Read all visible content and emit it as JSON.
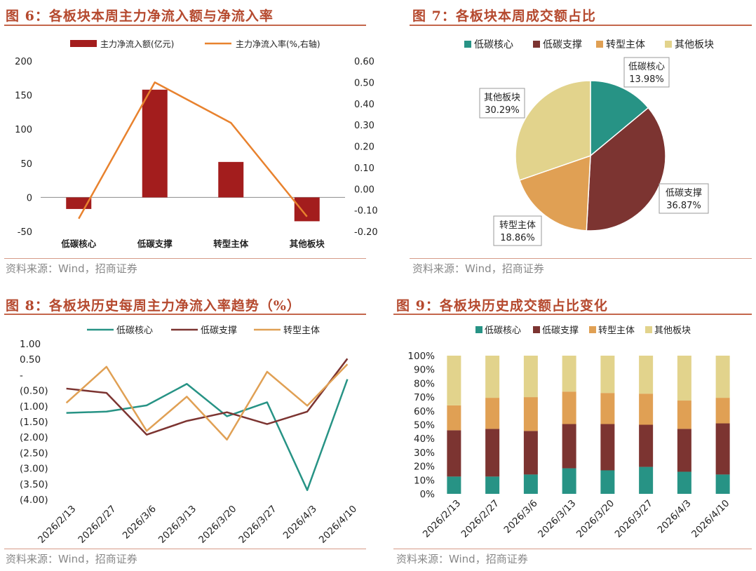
{
  "colors": {
    "title": "#b5492e",
    "bar_red": "#a31d1d",
    "line_orange": "#e8822e",
    "teal": "#279385",
    "brown": "#7c3431",
    "orange": "#e0a054",
    "khaki": "#e2d38c",
    "source_gray": "#888888"
  },
  "panels": {
    "fig6": {
      "title": "图 6：各板块本周主力净流入额与净流入率",
      "source": "资料来源：Wind，招商证券"
    },
    "fig7": {
      "title": "图 7：各板块本周成交额占比",
      "source": "资料来源：Wind，招商证券"
    },
    "fig8": {
      "title": "图 8：各板块历史每周主力净流入率趋势（%）",
      "source": "资料来源：Wind，招商证券"
    },
    "fig9": {
      "title": "图 9：各板块历史成交额占比变化",
      "source": "资料来源：Wind，招商证券"
    }
  },
  "chart_data": [
    {
      "id": "fig6",
      "type": "bar",
      "categories": [
        "低碳核心",
        "低碳支撑",
        "转型主体",
        "其他板块"
      ],
      "series": [
        {
          "name": "主力净流入额(亿元)",
          "type": "bar",
          "axis": "left",
          "values": [
            -17,
            158,
            52,
            -35
          ]
        },
        {
          "name": "主力净流入率(%,右轴)",
          "type": "line",
          "axis": "right",
          "values": [
            -0.14,
            0.5,
            0.31,
            -0.13
          ]
        }
      ],
      "ylim_left": [
        -50,
        200
      ],
      "yticks_left": [
        "200",
        "150",
        "100",
        "50",
        "0",
        "-50"
      ],
      "ylim_right": [
        -0.2,
        0.6
      ],
      "yticks_right": [
        "0.60",
        "0.50",
        "0.40",
        "0.30",
        "0.20",
        "0.10",
        "0.00",
        "-0.10",
        "-0.20"
      ],
      "legend_position": "top"
    },
    {
      "id": "fig7",
      "type": "pie",
      "categories": [
        "低碳核心",
        "低碳支撑",
        "转型主体",
        "其他板块"
      ],
      "values": [
        13.98,
        36.87,
        18.86,
        30.29
      ],
      "labels": [
        "13.98%",
        "36.87%",
        "18.86%",
        "30.29%"
      ],
      "legend": [
        "低碳核心",
        "低碳支撑",
        "转型主体",
        "其他板块"
      ],
      "legend_position": "top"
    },
    {
      "id": "fig8",
      "type": "line",
      "x": [
        "2026/2/13",
        "2026/2/27",
        "2026/3/6",
        "2026/3/13",
        "2026/3/20",
        "2026/3/27",
        "2026/4/3",
        "2026/4/10"
      ],
      "series": [
        {
          "name": "低碳核心",
          "values": [
            -1.22,
            -1.18,
            -0.98,
            -0.29,
            -1.33,
            -0.88,
            -3.7,
            -0.14
          ]
        },
        {
          "name": "低碳支撑",
          "values": [
            -0.44,
            -0.58,
            -1.92,
            -1.48,
            -1.2,
            -1.58,
            -1.18,
            0.52
          ]
        },
        {
          "name": "转型主体",
          "values": [
            -0.9,
            0.26,
            -1.8,
            -0.7,
            -2.08,
            0.1,
            -0.99,
            0.34
          ]
        }
      ],
      "ylim": [
        -4.0,
        1.0
      ],
      "yticks": [
        "1.00",
        "0.50",
        "-",
        "(0.50)",
        "(1.00)",
        "(1.50)",
        "(2.00)",
        "(2.50)",
        "(3.00)",
        "(3.50)",
        "(4.00)"
      ],
      "legend_position": "top"
    },
    {
      "id": "fig9",
      "type": "bar",
      "stacked": true,
      "categories": [
        "2026/2/13",
        "2026/2/27",
        "2026/3/6",
        "2026/3/13",
        "2026/3/20",
        "2026/3/27",
        "2026/4/3",
        "2026/4/10"
      ],
      "series": [
        {
          "name": "低碳核心",
          "values": [
            12.5,
            12.5,
            14.0,
            18.5,
            17.0,
            19.5,
            16.0,
            14.0
          ]
        },
        {
          "name": "低碳支撑",
          "values": [
            33.5,
            34.5,
            31.5,
            32.0,
            33.5,
            30.5,
            31.0,
            37.0
          ]
        },
        {
          "name": "转型主体",
          "values": [
            18.0,
            22.5,
            24.5,
            23.5,
            22.5,
            22.5,
            20.5,
            18.5
          ]
        },
        {
          "name": "其他板块",
          "values": [
            36.0,
            30.5,
            30.0,
            26.0,
            27.0,
            27.5,
            32.5,
            30.5
          ]
        }
      ],
      "ylim": [
        0,
        100
      ],
      "yticks": [
        "100%",
        "90%",
        "80%",
        "70%",
        "60%",
        "50%",
        "40%",
        "30%",
        "20%",
        "10%",
        "0%"
      ],
      "legend_position": "top"
    }
  ]
}
